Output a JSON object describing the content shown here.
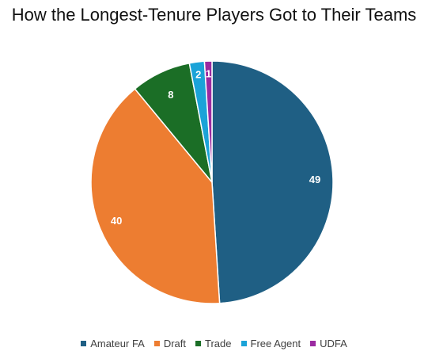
{
  "chart_data": {
    "type": "pie",
    "title": "How the Longest-Tenure Players Got to Their Teams",
    "categories": [
      "Amateur FA",
      "Draft",
      "Trade",
      "Free Agent",
      "UDFA"
    ],
    "values": [
      49,
      40,
      8,
      2,
      1
    ],
    "colors": [
      "#1F5F84",
      "#ED7D31",
      "#1B6E26",
      "#1BA3D8",
      "#9B2AA1"
    ],
    "data_labels": [
      "49",
      "40",
      "8",
      "2",
      "1"
    ],
    "legend": "bottom",
    "start_angle": "12 o'clock, clockwise"
  }
}
